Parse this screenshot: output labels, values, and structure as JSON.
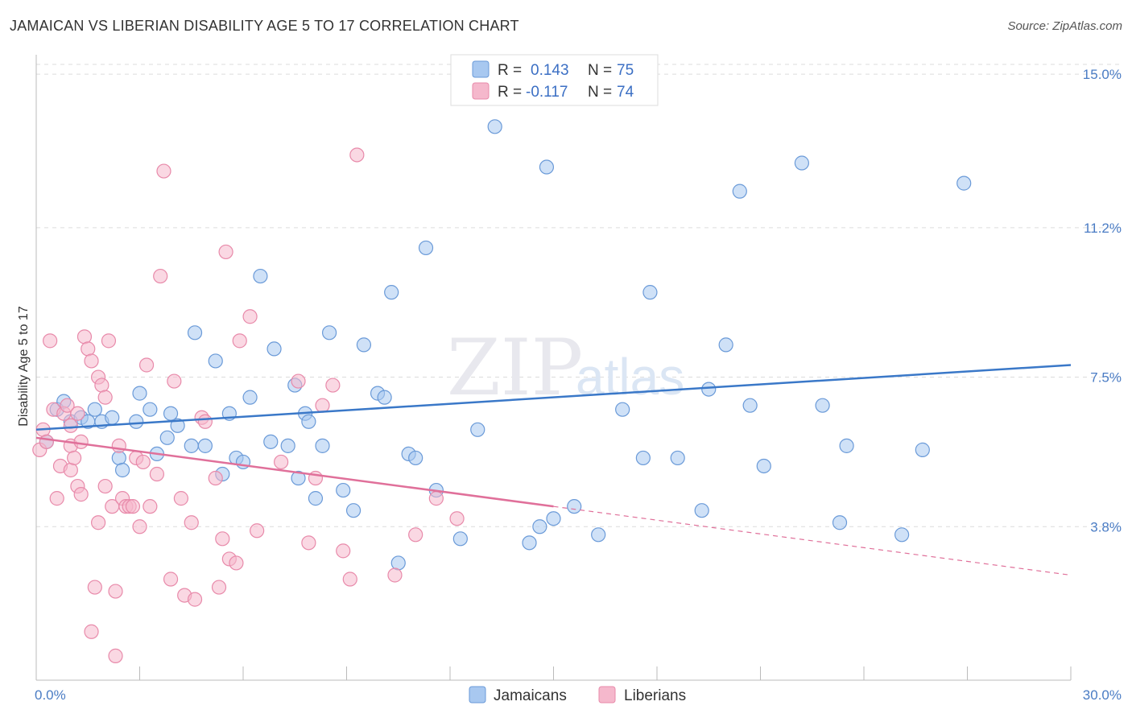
{
  "title": "JAMAICAN VS LIBERIAN DISABILITY AGE 5 TO 17 CORRELATION CHART",
  "source": "Source: ZipAtlas.com",
  "watermark": {
    "zip": "ZIP",
    "atlas": "atlas"
  },
  "legend": {
    "r_label": "R =",
    "n_label": "N =",
    "entries": [
      {
        "r": "0.143",
        "n": "75",
        "color": "#a8c8f0"
      },
      {
        "r": "-0.117",
        "n": "74",
        "color": "#f5b8cc"
      }
    ]
  },
  "bottom_legend": [
    "Jamaicans",
    "Liberians"
  ],
  "chart_data": {
    "type": "scatter",
    "title": "JAMAICAN VS LIBERIAN DISABILITY AGE 5 TO 17 CORRELATION CHART",
    "xlabel": "",
    "ylabel": "Disability Age 5 to 17",
    "xlim": [
      0,
      30
    ],
    "ylim": [
      0,
      15.4
    ],
    "x_tick_labels": [
      "0.0%",
      "30.0%"
    ],
    "y_ticks": [
      3.8,
      7.5,
      11.2,
      15.0
    ],
    "y_tick_labels": [
      "3.8%",
      "7.5%",
      "11.2%",
      "15.0%"
    ],
    "grid": "horizontal dashed",
    "legend_position": "top-center",
    "series": [
      {
        "name": "Jamaicans",
        "color": "#a8c8f0",
        "stroke": "#6a9ad8",
        "trend": {
          "x": [
            0,
            30
          ],
          "y": [
            6.2,
            7.8
          ],
          "dashed_from": null
        },
        "points": [
          [
            0.3,
            5.9
          ],
          [
            0.6,
            6.7
          ],
          [
            0.8,
            6.9
          ],
          [
            1.0,
            6.4
          ],
          [
            1.3,
            6.5
          ],
          [
            1.5,
            6.4
          ],
          [
            1.7,
            6.7
          ],
          [
            1.9,
            6.4
          ],
          [
            2.2,
            6.5
          ],
          [
            2.4,
            5.5
          ],
          [
            2.5,
            5.2
          ],
          [
            2.9,
            6.4
          ],
          [
            3.0,
            7.1
          ],
          [
            3.3,
            6.7
          ],
          [
            3.5,
            5.6
          ],
          [
            3.8,
            6.0
          ],
          [
            3.9,
            6.6
          ],
          [
            4.1,
            6.3
          ],
          [
            4.5,
            5.8
          ],
          [
            4.6,
            8.6
          ],
          [
            4.9,
            5.8
          ],
          [
            5.2,
            7.9
          ],
          [
            5.4,
            5.1
          ],
          [
            5.6,
            6.6
          ],
          [
            5.8,
            5.5
          ],
          [
            6.0,
            5.4
          ],
          [
            6.2,
            7.0
          ],
          [
            6.5,
            10.0
          ],
          [
            6.8,
            5.9
          ],
          [
            6.9,
            8.2
          ],
          [
            7.3,
            5.8
          ],
          [
            7.5,
            7.3
          ],
          [
            7.6,
            5.0
          ],
          [
            7.8,
            6.6
          ],
          [
            7.9,
            6.4
          ],
          [
            8.1,
            4.5
          ],
          [
            8.3,
            5.8
          ],
          [
            8.5,
            8.6
          ],
          [
            8.9,
            4.7
          ],
          [
            9.2,
            4.2
          ],
          [
            9.5,
            8.3
          ],
          [
            9.9,
            7.1
          ],
          [
            10.1,
            7.0
          ],
          [
            10.3,
            9.6
          ],
          [
            10.5,
            2.9
          ],
          [
            10.8,
            5.6
          ],
          [
            11.0,
            5.5
          ],
          [
            11.3,
            10.7
          ],
          [
            11.6,
            4.7
          ],
          [
            12.3,
            3.5
          ],
          [
            12.8,
            6.2
          ],
          [
            13.3,
            13.7
          ],
          [
            14.3,
            3.4
          ],
          [
            14.6,
            3.8
          ],
          [
            14.8,
            12.7
          ],
          [
            15.0,
            4.0
          ],
          [
            15.6,
            4.3
          ],
          [
            16.3,
            3.6
          ],
          [
            17.0,
            6.7
          ],
          [
            17.6,
            5.5
          ],
          [
            17.8,
            9.6
          ],
          [
            18.6,
            5.5
          ],
          [
            19.3,
            4.2
          ],
          [
            19.5,
            7.2
          ],
          [
            20.0,
            8.3
          ],
          [
            20.4,
            12.1
          ],
          [
            20.7,
            6.8
          ],
          [
            21.1,
            5.3
          ],
          [
            22.2,
            12.8
          ],
          [
            22.8,
            6.8
          ],
          [
            23.3,
            3.9
          ],
          [
            23.5,
            5.8
          ],
          [
            25.1,
            3.6
          ],
          [
            25.7,
            5.7
          ],
          [
            26.9,
            12.3
          ]
        ]
      },
      {
        "name": "Liberians",
        "color": "#f5b8cc",
        "stroke": "#e88aaa",
        "trend": {
          "x": [
            0,
            30
          ],
          "y": [
            6.0,
            2.6
          ],
          "dashed_from": 15.0
        },
        "points": [
          [
            0.1,
            5.7
          ],
          [
            0.2,
            6.2
          ],
          [
            0.3,
            5.9
          ],
          [
            0.4,
            8.4
          ],
          [
            0.5,
            6.7
          ],
          [
            0.6,
            4.5
          ],
          [
            0.7,
            5.3
          ],
          [
            0.8,
            6.6
          ],
          [
            0.9,
            6.8
          ],
          [
            1.0,
            5.8
          ],
          [
            1.0,
            6.3
          ],
          [
            1.0,
            5.2
          ],
          [
            1.1,
            5.5
          ],
          [
            1.2,
            6.6
          ],
          [
            1.2,
            4.8
          ],
          [
            1.3,
            5.9
          ],
          [
            1.3,
            4.6
          ],
          [
            1.4,
            8.5
          ],
          [
            1.5,
            8.2
          ],
          [
            1.6,
            1.2
          ],
          [
            1.6,
            7.9
          ],
          [
            1.7,
            2.3
          ],
          [
            1.8,
            7.5
          ],
          [
            1.8,
            3.9
          ],
          [
            1.9,
            7.3
          ],
          [
            2.0,
            7.0
          ],
          [
            2.0,
            4.8
          ],
          [
            2.1,
            8.4
          ],
          [
            2.2,
            4.3
          ],
          [
            2.3,
            2.2
          ],
          [
            2.3,
            0.6
          ],
          [
            2.4,
            5.8
          ],
          [
            2.5,
            4.5
          ],
          [
            2.6,
            4.3
          ],
          [
            2.7,
            4.3
          ],
          [
            2.8,
            4.3
          ],
          [
            2.9,
            5.5
          ],
          [
            3.0,
            3.8
          ],
          [
            3.1,
            5.4
          ],
          [
            3.2,
            7.8
          ],
          [
            3.3,
            4.3
          ],
          [
            3.5,
            5.1
          ],
          [
            3.6,
            10.0
          ],
          [
            3.7,
            12.6
          ],
          [
            3.9,
            2.5
          ],
          [
            4.0,
            7.4
          ],
          [
            4.2,
            4.5
          ],
          [
            4.3,
            2.1
          ],
          [
            4.5,
            3.9
          ],
          [
            4.6,
            2.0
          ],
          [
            4.8,
            6.5
          ],
          [
            4.9,
            6.4
          ],
          [
            5.2,
            5.0
          ],
          [
            5.3,
            2.3
          ],
          [
            5.4,
            3.5
          ],
          [
            5.5,
            10.6
          ],
          [
            5.6,
            3.0
          ],
          [
            5.8,
            2.9
          ],
          [
            5.9,
            8.4
          ],
          [
            6.2,
            9.0
          ],
          [
            6.4,
            3.7
          ],
          [
            7.1,
            5.4
          ],
          [
            7.6,
            7.4
          ],
          [
            7.9,
            3.4
          ],
          [
            8.1,
            5.0
          ],
          [
            8.3,
            6.8
          ],
          [
            8.6,
            7.3
          ],
          [
            8.9,
            3.2
          ],
          [
            9.1,
            2.5
          ],
          [
            9.3,
            13.0
          ],
          [
            10.4,
            2.6
          ],
          [
            11.0,
            3.6
          ],
          [
            11.6,
            4.5
          ],
          [
            12.2,
            4.0
          ]
        ]
      }
    ]
  }
}
